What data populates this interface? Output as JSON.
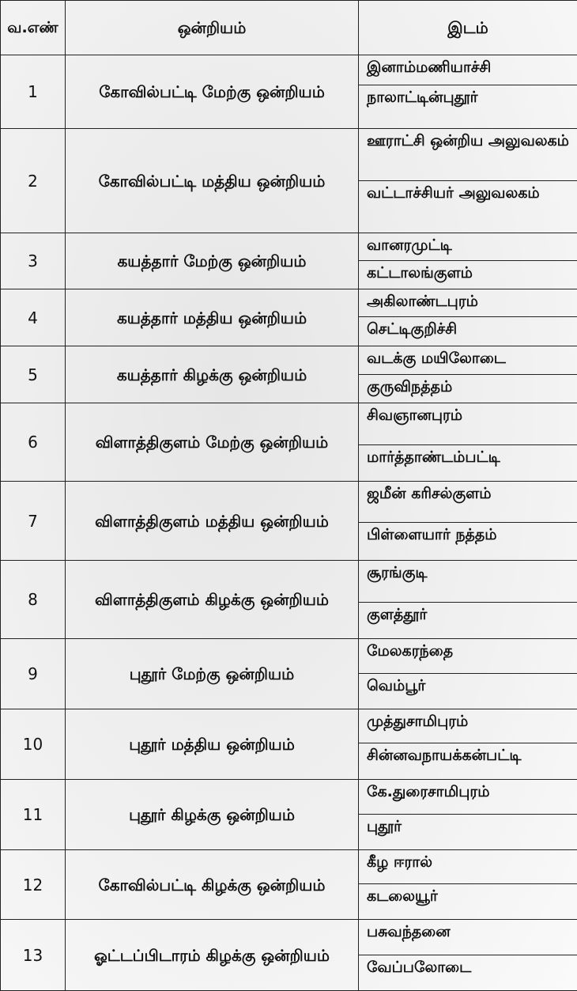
{
  "header": {
    "serial": "வ.எண்",
    "union": "ஒன்றியம்",
    "place": "இடம்"
  },
  "rows": [
    {
      "no": "1",
      "union": "கோவில்பட்டி மேற்கு ஒன்றியம்",
      "places": [
        "இனாம்மணியாச்சி",
        "நாலாட்டின்புதூர்"
      ]
    },
    {
      "no": "2",
      "union": "கோவில்பட்டி மத்திய ஒன்றியம்",
      "places": [
        "ஊராட்சி ஒன்றிய அலுவலகம்",
        "வட்டாச்சியர் அலுவலகம்"
      ]
    },
    {
      "no": "3",
      "union": "கயத்தார் மேற்கு ஒன்றியம்",
      "places": [
        "வானரமுட்டி",
        "கட்டாலங்குளம்"
      ]
    },
    {
      "no": "4",
      "union": "கயத்தார் மத்திய ஒன்றியம்",
      "places": [
        "அகிலாண்டபுரம்",
        "செட்டிகுறிச்சி"
      ]
    },
    {
      "no": "5",
      "union": "கயத்தார் கிழக்கு ஒன்றியம்",
      "places": [
        "வடக்கு மயிலோடை",
        "குருவிநத்தம்"
      ]
    },
    {
      "no": "6",
      "union": "விளாத்திகுளம் மேற்கு ஒன்றியம்",
      "places": [
        "சிவஞானபுரம்",
        "மார்த்தாண்டம்பட்டி"
      ]
    },
    {
      "no": "7",
      "union": "விளாத்திகுளம் மத்திய ஒன்றியம்",
      "places": [
        "ஜமீன் கரிசல்குளம்",
        "பிள்ளையார் நத்தம்"
      ]
    },
    {
      "no": "8",
      "union": "விளாத்திகுளம் கிழக்கு ஒன்றியம்",
      "places": [
        "சூரங்குடி",
        "குளத்தூர்"
      ]
    },
    {
      "no": "9",
      "union": "புதூர் மேற்கு ஒன்றியம்",
      "places": [
        "மேலகரந்தை",
        "வெம்பூர்"
      ]
    },
    {
      "no": "10",
      "union": "புதூர் மத்திய ஒன்றியம்",
      "places": [
        "முத்துசாமிபுரம்",
        "சின்னவநாயக்கன்பட்டி"
      ]
    },
    {
      "no": "11",
      "union": "புதூர் கிழக்கு ஒன்றியம்",
      "places": [
        "கே.துரைசாமிபுரம்",
        "புதூர்"
      ]
    },
    {
      "no": "12",
      "union": "கோவில்பட்டி கிழக்கு ஒன்றியம்",
      "places": [
        "கீழ ஈரால்",
        "கடலையூர்"
      ]
    },
    {
      "no": "13",
      "union": "ஓட்டப்பிடாரம் கிழக்கு ஒன்றியம்",
      "places": [
        "பசுவந்தனை",
        "வேப்பலோடை"
      ]
    }
  ]
}
